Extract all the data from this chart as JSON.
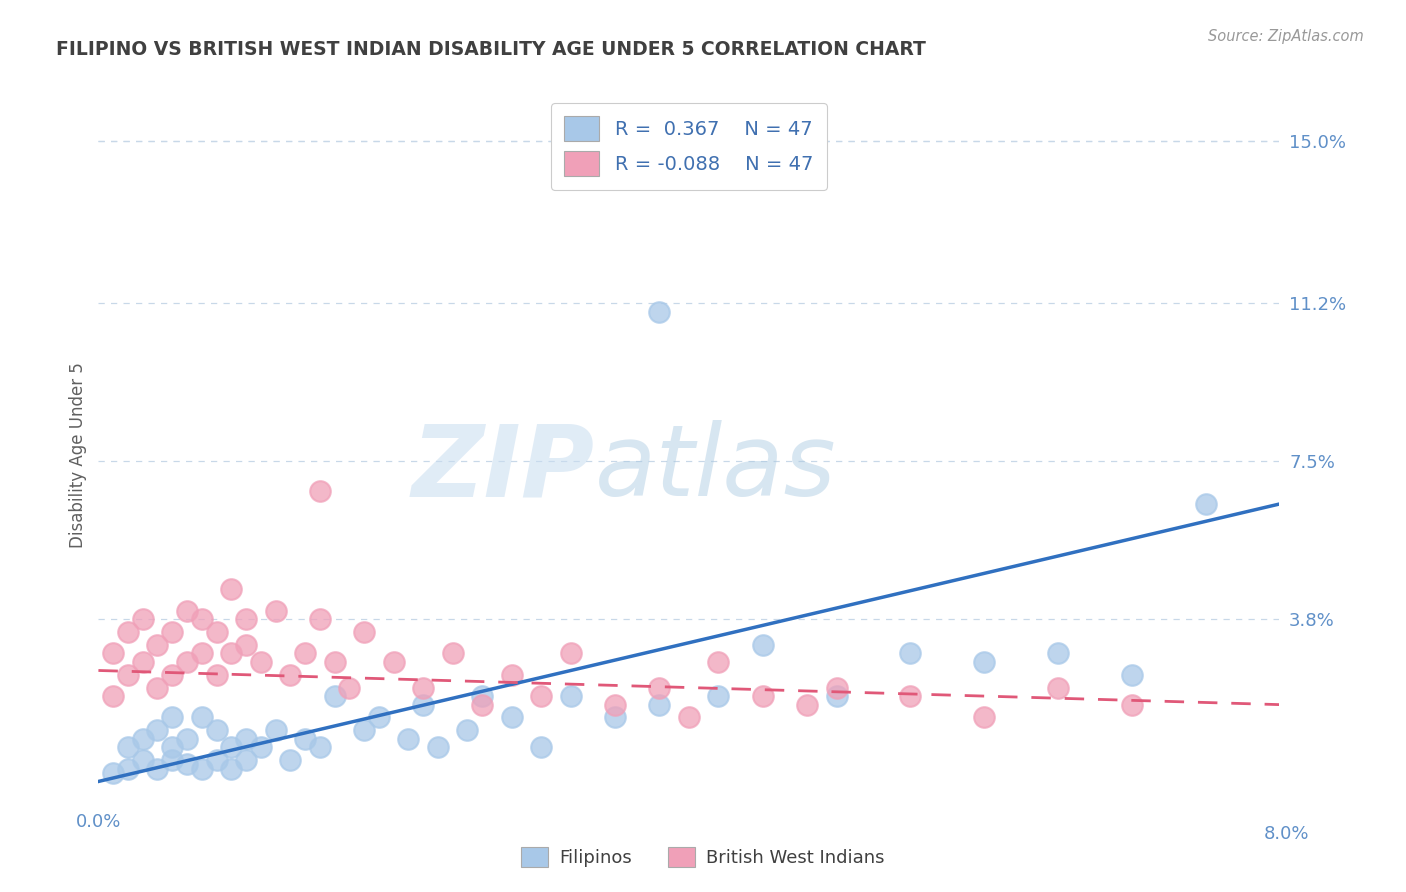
{
  "title": "FILIPINO VS BRITISH WEST INDIAN DISABILITY AGE UNDER 5 CORRELATION CHART",
  "source": "Source: ZipAtlas.com",
  "ylabel": "Disability Age Under 5",
  "xlim": [
    0.0,
    0.08
  ],
  "ylim": [
    -0.005,
    0.158
  ],
  "ytick_positions": [
    0.038,
    0.075,
    0.112,
    0.15
  ],
  "ytick_labels": [
    "3.8%",
    "7.5%",
    "11.2%",
    "15.0%"
  ],
  "legend1_label": "Filipinos",
  "legend2_label": "British West Indians",
  "r1": 0.367,
  "n1": 47,
  "r2": -0.088,
  "n2": 47,
  "blue_color": "#a8c8e8",
  "pink_color": "#f0a0b8",
  "blue_line_color": "#3070c0",
  "pink_line_color": "#e05878",
  "title_color": "#404040",
  "axis_label_color": "#606060",
  "tick_color": "#6090c8",
  "grid_color": "#c8d8e8",
  "watermark_zip": "ZIP",
  "watermark_atlas": "atlas",
  "filipino_x": [
    0.001,
    0.002,
    0.002,
    0.003,
    0.003,
    0.004,
    0.004,
    0.005,
    0.005,
    0.005,
    0.006,
    0.006,
    0.007,
    0.007,
    0.008,
    0.008,
    0.009,
    0.009,
    0.01,
    0.01,
    0.011,
    0.012,
    0.013,
    0.014,
    0.015,
    0.016,
    0.018,
    0.019,
    0.021,
    0.022,
    0.023,
    0.025,
    0.026,
    0.028,
    0.03,
    0.032,
    0.035,
    0.038,
    0.042,
    0.045,
    0.05,
    0.055,
    0.06,
    0.065,
    0.07,
    0.075,
    0.038
  ],
  "filipino_y": [
    0.002,
    0.003,
    0.008,
    0.005,
    0.01,
    0.003,
    0.012,
    0.005,
    0.008,
    0.015,
    0.004,
    0.01,
    0.003,
    0.015,
    0.005,
    0.012,
    0.003,
    0.008,
    0.005,
    0.01,
    0.008,
    0.012,
    0.005,
    0.01,
    0.008,
    0.02,
    0.012,
    0.015,
    0.01,
    0.018,
    0.008,
    0.012,
    0.02,
    0.015,
    0.008,
    0.02,
    0.015,
    0.018,
    0.02,
    0.032,
    0.02,
    0.03,
    0.028,
    0.03,
    0.025,
    0.065,
    0.11
  ],
  "bwi_x": [
    0.001,
    0.001,
    0.002,
    0.002,
    0.003,
    0.003,
    0.004,
    0.004,
    0.005,
    0.005,
    0.006,
    0.006,
    0.007,
    0.007,
    0.008,
    0.008,
    0.009,
    0.009,
    0.01,
    0.01,
    0.011,
    0.012,
    0.013,
    0.014,
    0.015,
    0.016,
    0.017,
    0.018,
    0.02,
    0.022,
    0.024,
    0.026,
    0.028,
    0.03,
    0.032,
    0.035,
    0.038,
    0.04,
    0.042,
    0.045,
    0.048,
    0.05,
    0.055,
    0.06,
    0.065,
    0.07,
    0.015
  ],
  "bwi_y": [
    0.02,
    0.03,
    0.025,
    0.035,
    0.028,
    0.038,
    0.022,
    0.032,
    0.035,
    0.025,
    0.04,
    0.028,
    0.038,
    0.03,
    0.035,
    0.025,
    0.045,
    0.03,
    0.032,
    0.038,
    0.028,
    0.04,
    0.025,
    0.03,
    0.038,
    0.028,
    0.022,
    0.035,
    0.028,
    0.022,
    0.03,
    0.018,
    0.025,
    0.02,
    0.03,
    0.018,
    0.022,
    0.015,
    0.028,
    0.02,
    0.018,
    0.022,
    0.02,
    0.015,
    0.022,
    0.018,
    0.068
  ]
}
